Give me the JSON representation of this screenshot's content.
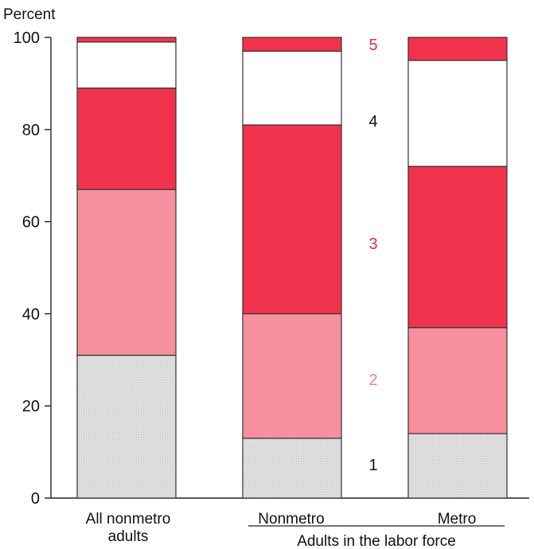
{
  "chart_data": {
    "type": "bar",
    "stacked": true,
    "ylabel": "Percent",
    "ylim": [
      0,
      100
    ],
    "yticks": [
      0,
      20,
      40,
      60,
      80,
      100
    ],
    "categories": [
      "All nonmetro adults",
      "Nonmetro",
      "Metro"
    ],
    "category_lines": [
      [
        "All nonmetro",
        "adults"
      ],
      [
        "Nonmetro"
      ],
      [
        "Metro"
      ]
    ],
    "group_label": "Adults in the labor force",
    "series": [
      {
        "name": "1",
        "color": "#dcdcdc",
        "values": [
          31,
          13,
          14
        ]
      },
      {
        "name": "2",
        "color": "#f7909e",
        "values": [
          36,
          27,
          23
        ]
      },
      {
        "name": "3",
        "color": "#f2334d",
        "values": [
          22,
          41,
          35
        ]
      },
      {
        "name": "4",
        "color": "#ffffff",
        "values": [
          10,
          16,
          23
        ]
      },
      {
        "name": "5",
        "color": "#f2334d",
        "values": [
          1,
          3,
          5
        ]
      }
    ],
    "segment_label_colors": [
      "#111111",
      "#f07f92",
      "#e0304a",
      "#111111",
      "#e0304a"
    ],
    "grid": false,
    "legend": "right"
  }
}
